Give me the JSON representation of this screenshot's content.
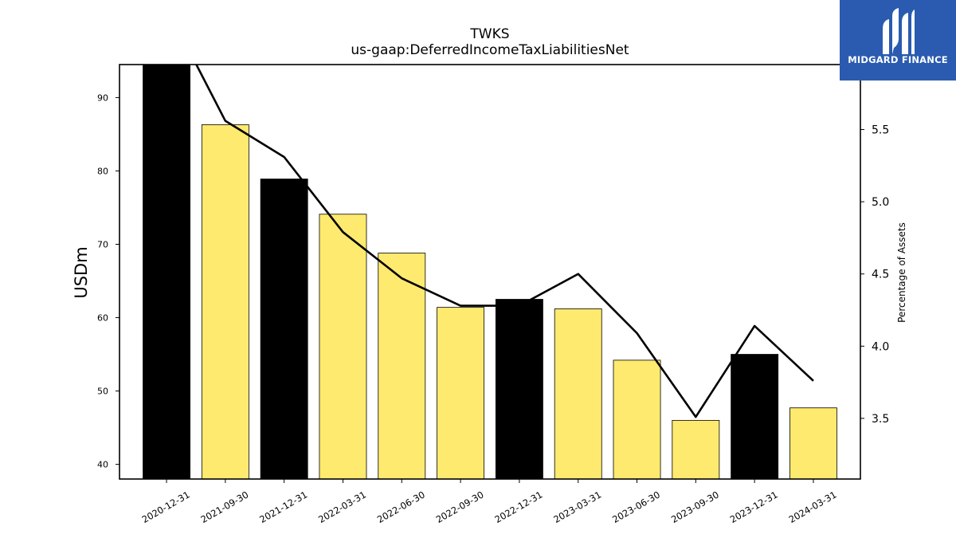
{
  "chart_data": {
    "type": "bar",
    "title": "TWKS",
    "subtitle": "us-gaap:DeferredIncomeTaxLiabilitiesNet",
    "ylabel": "USDm",
    "y2label": "Percentage of Assets",
    "ylim": [
      38,
      94.5
    ],
    "y2lim": [
      3.08,
      5.95
    ],
    "yticks": [
      40,
      50,
      60,
      70,
      80,
      90
    ],
    "y2ticks": [
      "3.5",
      "4.0",
      "4.5",
      "5.0",
      "5.5"
    ],
    "categories": [
      "2020-12-31",
      "2021-09-30",
      "2021-12-31",
      "2022-03-31",
      "2022-06-30",
      "2022-09-30",
      "2022-12-31",
      "2023-03-31",
      "2023-06-30",
      "2023-09-30",
      "2023-12-31",
      "2024-03-31"
    ],
    "series": [
      {
        "type": "bar",
        "axis": "left",
        "values": [
          95.5,
          86.3,
          78.9,
          74.1,
          68.8,
          61.4,
          62.5,
          61.2,
          54.2,
          46.0,
          55.0,
          47.7
        ],
        "colors": [
          "#000000",
          "#fdea6e",
          "#000000",
          "#fdea6e",
          "#fdea6e",
          "#fdea6e",
          "#000000",
          "#fdea6e",
          "#fdea6e",
          "#fdea6e",
          "#000000",
          "#fdea6e"
        ]
      },
      {
        "type": "line",
        "axis": "right",
        "color": "#000000",
        "values": [
          6.35,
          5.56,
          5.31,
          4.79,
          4.47,
          4.28,
          4.28,
          4.5,
          4.09,
          3.51,
          4.14,
          3.76
        ]
      }
    ],
    "grid": false
  },
  "logo": {
    "text": "MIDGARD FINANCE",
    "color": "#2a5bb0"
  }
}
